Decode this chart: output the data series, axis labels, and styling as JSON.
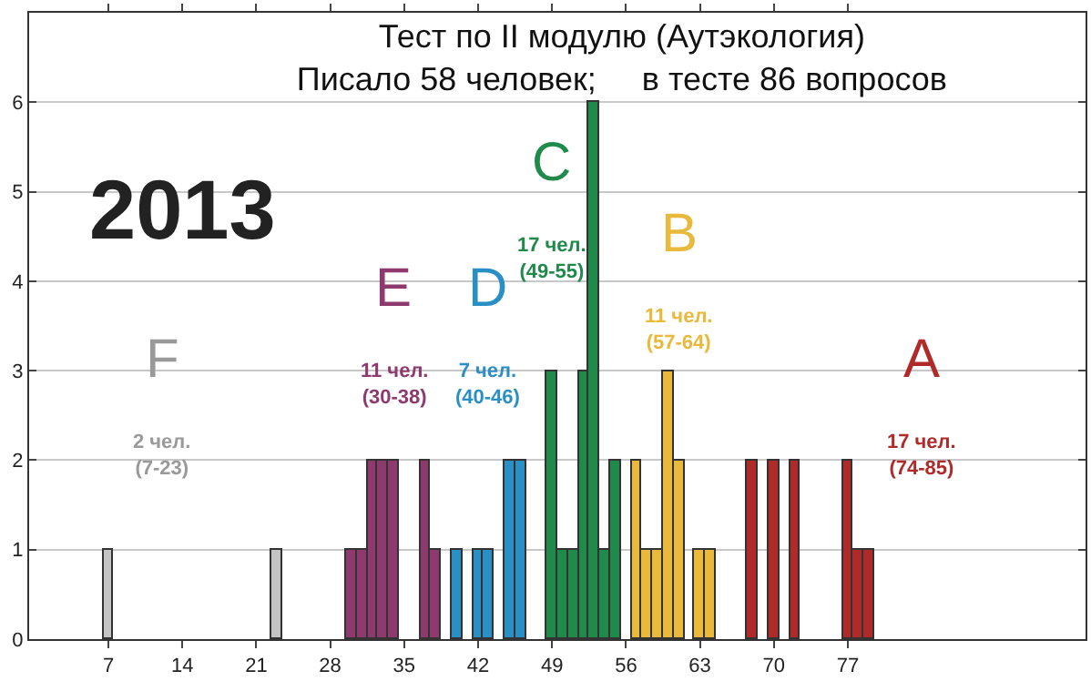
{
  "chart_data": {
    "type": "bar",
    "title": "Тест по II модулю (Аутэкология)",
    "subtitle": "Писало 58 человек;     в тесте 86 вопросов",
    "series": [
      {
        "color": "#c4c4c4",
        "x": [
          7,
          23
        ],
        "values": [
          1,
          1
        ]
      },
      {
        "color": "#8e3a6e",
        "x": [
          30,
          31,
          32,
          33,
          34,
          37,
          38
        ],
        "values": [
          1,
          1,
          2,
          2,
          2,
          2,
          1
        ]
      },
      {
        "color": "#2a8fc4",
        "x": [
          40,
          42,
          43,
          45,
          46
        ],
        "values": [
          1,
          1,
          1,
          2,
          2
        ]
      },
      {
        "color": "#1f8a4a",
        "x": [
          49,
          50,
          51,
          52,
          53,
          54,
          55
        ],
        "values": [
          3,
          1,
          1,
          3,
          6,
          1,
          2
        ]
      },
      {
        "color": "#e8b93a",
        "x": [
          57,
          58,
          59,
          60,
          61,
          63,
          64
        ],
        "values": [
          2,
          1,
          1,
          3,
          2,
          1,
          1
        ]
      },
      {
        "color": "#b02a2a",
        "x": [
          68,
          70,
          72,
          77,
          78,
          79
        ],
        "values": [
          2,
          2,
          2,
          2,
          1,
          1
        ]
      }
    ],
    "annotations": [
      "2013",
      "F",
      "2 чел.\n(7-23)",
      "E",
      "11 чел.\n(30-38)",
      "D",
      "7 чел.\n(40-46)",
      "C",
      "17 чел.\n(49-55)",
      "B",
      "11 чел.\n(57-64)",
      "A",
      "17 чел.\n(74-85)"
    ],
    "xlim": [
      -0.5,
      99.5
    ],
    "xticks": [
      7,
      14,
      21,
      28,
      35,
      42,
      49,
      56,
      63,
      70,
      77
    ],
    "ylim": [
      0,
      7
    ],
    "yticks": [
      0,
      1,
      2,
      3,
      4,
      5,
      6
    ],
    "grid": "y"
  }
}
